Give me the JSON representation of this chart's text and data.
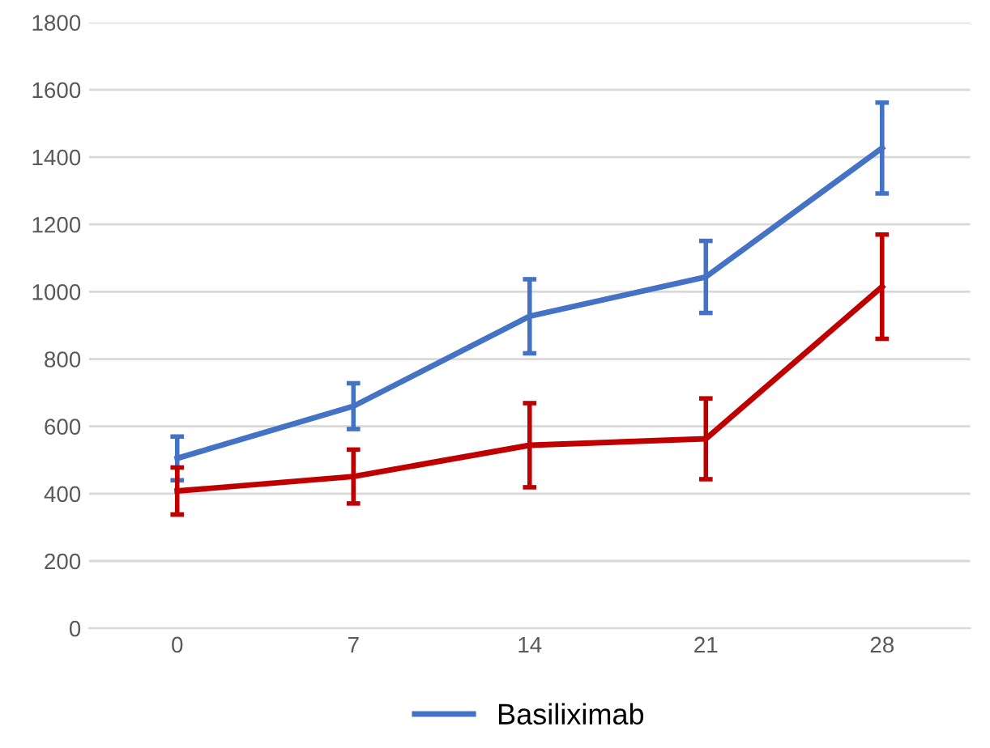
{
  "chart_data": {
    "type": "line",
    "categories": [
      "0",
      "7",
      "14",
      "21",
      "28"
    ],
    "series": [
      {
        "name": "Basiliximab",
        "color": "#4472c4",
        "values": [
          505,
          660,
          927,
          1044,
          1427
        ],
        "errors": [
          65,
          68,
          110,
          107,
          135
        ]
      },
      {
        "color": "#c00000",
        "values": [
          408,
          451,
          544,
          563,
          1015
        ],
        "errors": [
          70,
          80,
          125,
          120,
          155
        ]
      }
    ],
    "ylim": [
      0,
      1800
    ],
    "yticks": [
      0,
      200,
      400,
      600,
      800,
      1000,
      1200,
      1400,
      1600,
      1800
    ],
    "grid": "y",
    "legend": "bottom",
    "marker": "none",
    "line_style": "solid"
  }
}
